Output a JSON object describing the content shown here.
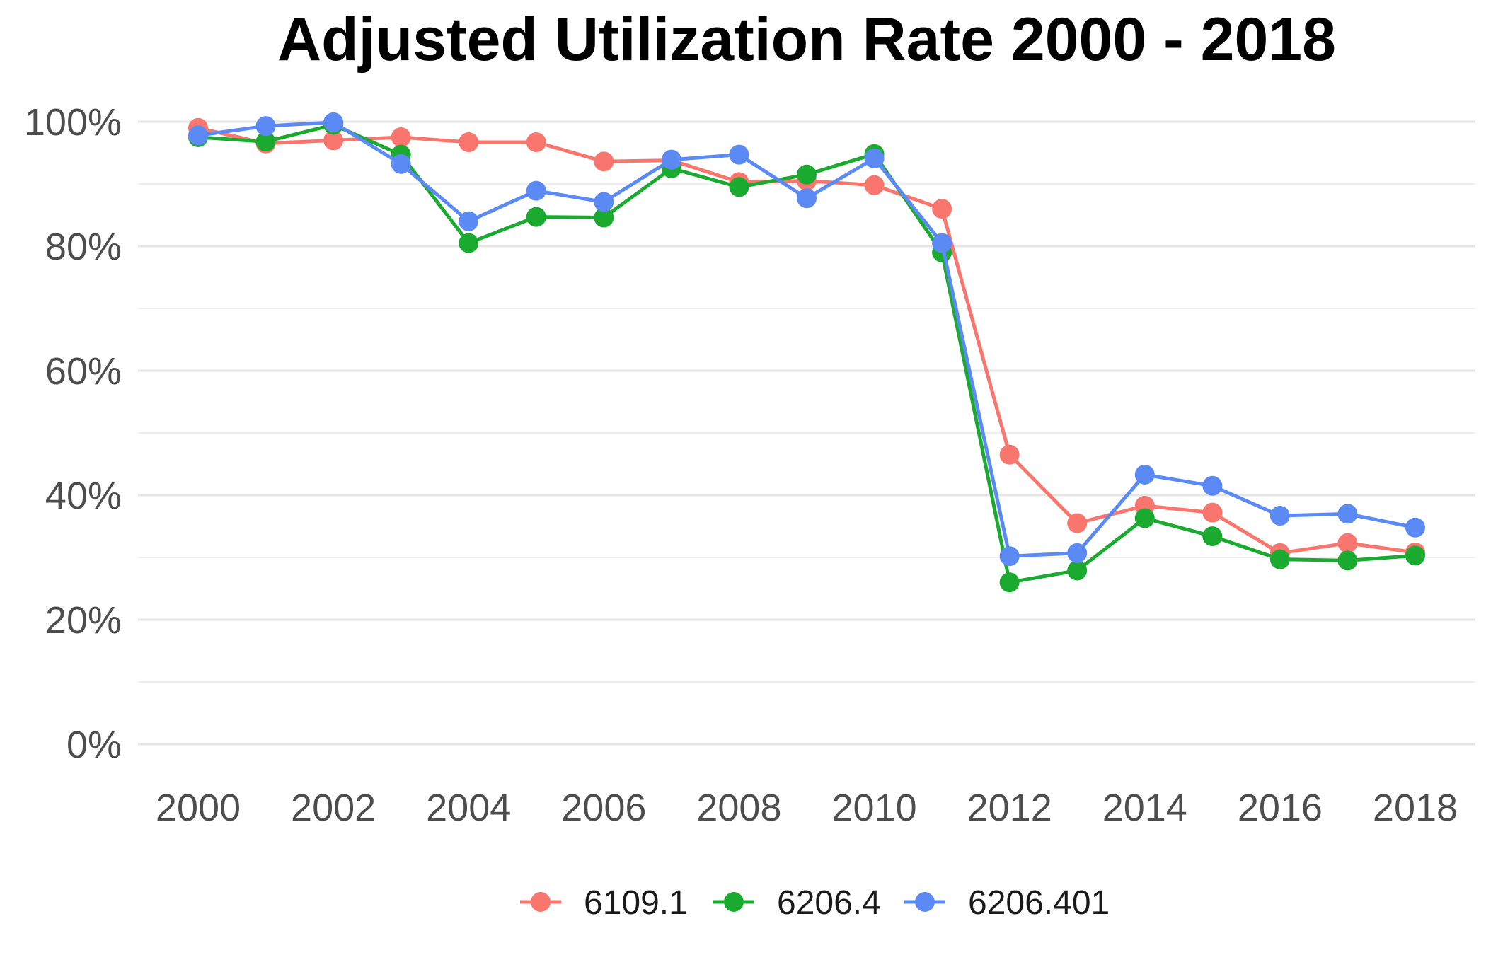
{
  "chart_data": {
    "type": "line",
    "title": "Adjusted Utilization Rate 2000 - 2018",
    "xlabel": "",
    "ylabel": "",
    "x": [
      2000,
      2001,
      2002,
      2003,
      2004,
      2005,
      2006,
      2007,
      2008,
      2009,
      2010,
      2011,
      2012,
      2013,
      2014,
      2015,
      2016,
      2017,
      2018
    ],
    "xlim": [
      2000,
      2018
    ],
    "x_ticks": [
      2000,
      2002,
      2004,
      2006,
      2008,
      2010,
      2012,
      2014,
      2016,
      2018
    ],
    "x_tick_labels": [
      "2000",
      "2002",
      "2004",
      "2006",
      "2008",
      "2010",
      "2012",
      "2014",
      "2016",
      "2018"
    ],
    "ylim": [
      0,
      1
    ],
    "y_ticks": [
      0,
      0.2,
      0.4,
      0.6,
      0.8,
      1.0
    ],
    "y_tick_labels": [
      "0%",
      "20%",
      "40%",
      "60%",
      "80%",
      "100%"
    ],
    "grid": true,
    "legend_position": "bottom",
    "series": [
      {
        "name": "6109.1",
        "color": "#F8766D",
        "values": [
          0.99,
          0.965,
          0.97,
          0.975,
          0.967,
          0.967,
          0.936,
          0.938,
          0.903,
          0.905,
          0.898,
          0.86,
          0.465,
          0.355,
          0.383,
          0.372,
          0.307,
          0.323,
          0.308
        ]
      },
      {
        "name": "6206.4",
        "color": "#1BAA30",
        "values": [
          0.975,
          0.968,
          0.995,
          0.947,
          0.805,
          0.847,
          0.846,
          0.925,
          0.895,
          0.915,
          0.948,
          0.79,
          0.26,
          0.279,
          0.363,
          0.334,
          0.297,
          0.295,
          0.303
        ]
      },
      {
        "name": "6206.401",
        "color": "#5B8AF5",
        "values": [
          0.978,
          0.993,
          0.999,
          0.932,
          0.84,
          0.889,
          0.871,
          0.939,
          0.947,
          0.877,
          0.941,
          0.805,
          0.302,
          0.307,
          0.433,
          0.415,
          0.367,
          0.37,
          0.348
        ]
      }
    ]
  }
}
